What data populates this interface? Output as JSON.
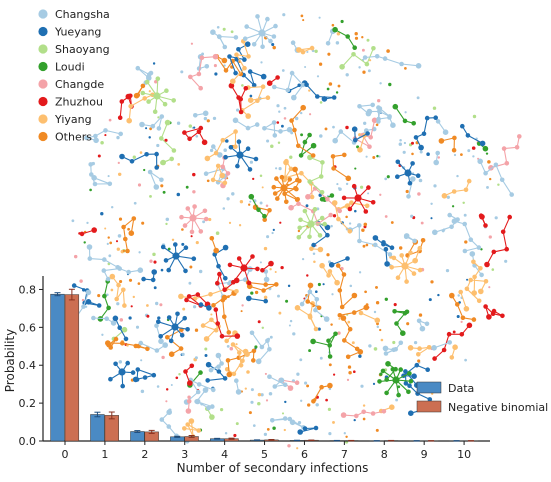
{
  "network_legend": {
    "items": [
      {
        "label": "Changsha",
        "color": "#a6cbe3"
      },
      {
        "label": "Yueyang",
        "color": "#1f6fb2"
      },
      {
        "label": "Shaoyang",
        "color": "#b2df8a"
      },
      {
        "label": "Loudi",
        "color": "#33a02c"
      },
      {
        "label": "Changde",
        "color": "#f4a3a8"
      },
      {
        "label": "Zhuzhou",
        "color": "#e31a1c"
      },
      {
        "label": "Yiyang",
        "color": "#fdbf6f"
      },
      {
        "label": "Others",
        "color": "#f08a24"
      }
    ]
  },
  "chart_data": {
    "type": "bar",
    "categories": [
      "0",
      "1",
      "2",
      "3",
      "4",
      "5",
      "6",
      "7",
      "8",
      "9",
      "10"
    ],
    "xlabel": "Number of secondary infections",
    "ylabel": "Probability",
    "ylim": [
      0,
      0.85
    ],
    "yticks": [
      "0.0",
      "0.2",
      "0.4",
      "0.6",
      "0.8"
    ],
    "legend_position": "bottom-right",
    "series": [
      {
        "name": "Data",
        "color": "#4a8ac4",
        "values": [
          0.775,
          0.14,
          0.05,
          0.022,
          0.012,
          0.005,
          0.003,
          0.002,
          0.001,
          0.001,
          0.001
        ],
        "errors": [
          0.008,
          0.012,
          0.005,
          0.003,
          0.002,
          0.001,
          0.001,
          0.001,
          0.001,
          0.001,
          0.001
        ]
      },
      {
        "name": "Negative binomial",
        "color": "#cc6f52",
        "values": [
          0.773,
          0.135,
          0.048,
          0.024,
          0.012,
          0.006,
          0.004,
          0.002,
          0.002,
          0.001,
          0.001
        ],
        "errors": [
          0.028,
          0.018,
          0.008,
          0.005,
          0.003,
          0.002,
          0.001,
          0.001,
          0.001,
          0.001,
          0.001
        ]
      }
    ]
  }
}
